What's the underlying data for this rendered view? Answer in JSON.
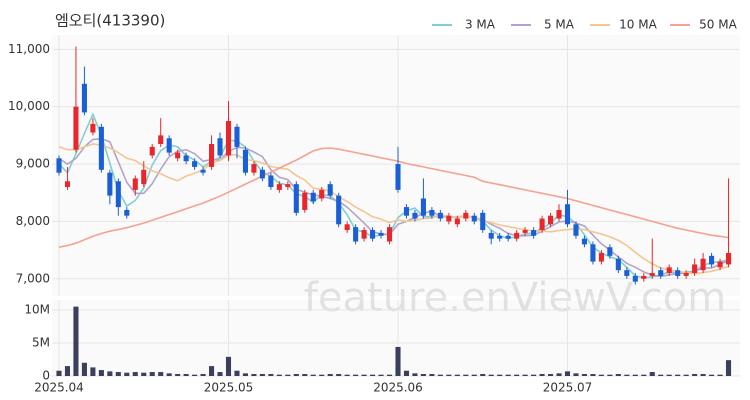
{
  "chart_data": {
    "type": "candlestick",
    "title": "엠오티(413390)",
    "watermark": "feature.enViewV.com",
    "up_color": "#e8262b",
    "down_color": "#1a5fd6",
    "volume_color": "#3b3f5e",
    "grid": true,
    "xticks": [
      {
        "value": 0,
        "label": "2025.04"
      },
      {
        "value": 20,
        "label": "2025.05"
      },
      {
        "value": 40,
        "label": "2025.06"
      },
      {
        "value": 60,
        "label": "2025.07"
      }
    ],
    "ylim": [
      6700,
      11250
    ],
    "yticks": [
      {
        "value": 7000,
        "label": "7,000"
      },
      {
        "value": 8000,
        "label": "8,000"
      },
      {
        "value": 9000,
        "label": "9,000"
      },
      {
        "value": 10000,
        "label": "10,000"
      },
      {
        "value": 11000,
        "label": "11,000"
      }
    ],
    "volume_ylim": [
      0,
      11500000
    ],
    "volume_ticks": [
      0,
      {
        "value": 5000000,
        "label": "5M"
      },
      {
        "value": 10000000,
        "label": "10M"
      }
    ],
    "open": [
      9100,
      8600,
      9250,
      10400,
      9550,
      9650,
      8850,
      8700,
      8200,
      8550,
      8650,
      9150,
      9350,
      9450,
      9100,
      9150,
      9050,
      8900,
      8950,
      9450,
      9150,
      9650,
      9250,
      8850,
      8900,
      8800,
      8550,
      8600,
      8650,
      8200,
      8500,
      8400,
      8650,
      8450,
      7850,
      7900,
      7700,
      7850,
      7800,
      7650,
      9000,
      8250,
      8150,
      8400,
      8200,
      8150,
      8000,
      7950,
      8050,
      8100,
      8150,
      7800,
      7750,
      7750,
      7700,
      7800,
      7850,
      7850,
      7950,
      8050,
      8300,
      7950,
      7700,
      7600,
      7300,
      7550,
      7350,
      7150,
      7050,
      7000,
      7050,
      7150,
      7100,
      7150,
      7050,
      7100,
      7150,
      7400,
      7200,
      7250
    ],
    "high": [
      9150,
      8950,
      11050,
      10700,
      9800,
      9700,
      8900,
      8750,
      8250,
      8800,
      9050,
      9350,
      9800,
      9500,
      9250,
      9200,
      9100,
      8950,
      9500,
      9550,
      10100,
      9700,
      9300,
      9050,
      8950,
      8850,
      8700,
      8700,
      8700,
      8550,
      8550,
      8600,
      8700,
      8500,
      8000,
      7950,
      7900,
      7900,
      7850,
      7950,
      9300,
      8300,
      8200,
      8750,
      8250,
      8200,
      8150,
      8100,
      8200,
      8150,
      8200,
      7850,
      7800,
      7800,
      7850,
      7900,
      7900,
      8100,
      8150,
      8300,
      8550,
      8000,
      7750,
      7650,
      7500,
      7600,
      7400,
      7200,
      7100,
      7100,
      7700,
      7200,
      7250,
      7200,
      7150,
      7350,
      7450,
      7450,
      7350,
      8750
    ],
    "low": [
      8800,
      8550,
      9200,
      9850,
      9500,
      8850,
      8300,
      8100,
      8050,
      8450,
      8600,
      9100,
      9300,
      9150,
      9050,
      9000,
      8900,
      8800,
      8900,
      9100,
      9050,
      9100,
      8800,
      8800,
      8700,
      8550,
      8500,
      8550,
      8100,
      8150,
      8300,
      8350,
      8400,
      7900,
      7800,
      7600,
      7650,
      7650,
      7700,
      7600,
      8500,
      8050,
      8000,
      8050,
      8050,
      8000,
      7950,
      7900,
      8000,
      7950,
      7800,
      7600,
      7650,
      7650,
      7650,
      7750,
      7700,
      7800,
      7900,
      8000,
      7900,
      7700,
      7550,
      7250,
      7250,
      7350,
      7100,
      7000,
      6900,
      6950,
      7000,
      7000,
      7050,
      7000,
      7000,
      7050,
      7100,
      7200,
      7150,
      7200
    ],
    "close": [
      8850,
      8700,
      10000,
      9900,
      9700,
      8900,
      8450,
      8250,
      8100,
      8750,
      8900,
      9300,
      9500,
      9200,
      9200,
      9050,
      8950,
      8850,
      9350,
      9150,
      9750,
      9300,
      8850,
      9000,
      8750,
      8600,
      8650,
      8650,
      8150,
      8500,
      8350,
      8550,
      8450,
      7950,
      7950,
      7650,
      7850,
      7700,
      7750,
      7900,
      8550,
      8100,
      8050,
      8100,
      8100,
      8050,
      8100,
      8050,
      8150,
      8000,
      7850,
      7700,
      7700,
      7700,
      7800,
      7850,
      7750,
      8050,
      8100,
      8200,
      7950,
      7750,
      7600,
      7300,
      7450,
      7400,
      7150,
      7050,
      6950,
      7050,
      7100,
      7050,
      7200,
      7050,
      7100,
      7250,
      7350,
      7250,
      7300,
      7450
    ],
    "volume": [
      800000,
      1500000,
      10500000,
      2000000,
      1300000,
      900000,
      700000,
      600000,
      500000,
      600000,
      500000,
      600000,
      600000,
      400000,
      300000,
      300000,
      200000,
      300000,
      1500000,
      600000,
      2900000,
      800000,
      400000,
      300000,
      300000,
      300000,
      200000,
      200000,
      300000,
      300000,
      200000,
      200000,
      300000,
      300000,
      200000,
      200000,
      200000,
      200000,
      200000,
      200000,
      4400000,
      800000,
      400000,
      300000,
      300000,
      200000,
      200000,
      200000,
      200000,
      200000,
      300000,
      200000,
      200000,
      200000,
      200000,
      200000,
      200000,
      300000,
      300000,
      400000,
      700000,
      400000,
      300000,
      300000,
      200000,
      200000,
      300000,
      200000,
      200000,
      200000,
      600000,
      200000,
      200000,
      200000,
      200000,
      300000,
      300000,
      200000,
      200000,
      2400000
    ],
    "series": [
      {
        "name": "3 MA",
        "color": "#7fd0d0",
        "values": [
          9000,
          8850,
          9183,
          9533,
          9867,
          9500,
          9017,
          8533,
          8267,
          8367,
          8583,
          8983,
          9233,
          9333,
          9300,
          9150,
          9067,
          8950,
          9050,
          9117,
          9417,
          9400,
          9300,
          9050,
          8867,
          8783,
          8667,
          8633,
          8483,
          8433,
          8333,
          8467,
          8450,
          8317,
          8117,
          7850,
          7817,
          7733,
          7767,
          7783,
          8067,
          8183,
          8233,
          8083,
          8083,
          8083,
          8083,
          8067,
          8100,
          8067,
          8000,
          7850,
          7750,
          7700,
          7733,
          7783,
          7800,
          7883,
          7967,
          8117,
          8083,
          7967,
          7767,
          7550,
          7450,
          7383,
          7333,
          7200,
          7050,
          7017,
          7033,
          7067,
          7117,
          7100,
          7117,
          7133,
          7233,
          7283,
          7300,
          7333
        ]
      },
      {
        "name": "5 MA",
        "color": "#b3a3cc",
        "values": [
          9100,
          9000,
          9100,
          9300,
          9430,
          9440,
          9390,
          9040,
          8680,
          8490,
          8490,
          8660,
          8910,
          9130,
          9220,
          9250,
          9180,
          9050,
          9080,
          9070,
          9220,
          9290,
          9280,
          9210,
          9130,
          8900,
          8770,
          8730,
          8560,
          8510,
          8460,
          8440,
          8400,
          8350,
          8250,
          8110,
          7970,
          7820,
          7780,
          7770,
          7950,
          8000,
          8070,
          8140,
          8180,
          8080,
          8080,
          8080,
          8090,
          8070,
          8030,
          7950,
          7880,
          7790,
          7750,
          7750,
          7760,
          7830,
          7910,
          7990,
          8010,
          7970,
          7920,
          7760,
          7610,
          7500,
          7380,
          7270,
          7200,
          7120,
          7060,
          7040,
          7070,
          7090,
          7100,
          7130,
          7190,
          7190,
          7250,
          7320
        ]
      },
      {
        "name": "10 MA",
        "color": "#f3c690",
        "values": [
          9300,
          9250,
          9250,
          9300,
          9350,
          9330,
          9280,
          9200,
          9100,
          9060,
          8970,
          8880,
          8830,
          8760,
          8710,
          8790,
          8840,
          8900,
          9020,
          9060,
          9160,
          9160,
          9080,
          9060,
          9020,
          8960,
          8930,
          8910,
          8800,
          8720,
          8580,
          8560,
          8530,
          8430,
          8350,
          8250,
          8170,
          8080,
          8040,
          7980,
          8030,
          8000,
          8020,
          8050,
          8060,
          8110,
          8090,
          8080,
          8100,
          8070,
          8020,
          7980,
          7940,
          7910,
          7880,
          7860,
          7830,
          7830,
          7820,
          7840,
          7860,
          7870,
          7860,
          7820,
          7780,
          7730,
          7670,
          7580,
          7460,
          7350,
          7260,
          7190,
          7150,
          7130,
          7110,
          7090,
          7110,
          7130,
          7170,
          7210
        ]
      },
      {
        "name": "50 MA",
        "color": "#f4a292",
        "values": [
          7550,
          7580,
          7620,
          7680,
          7740,
          7790,
          7830,
          7860,
          7890,
          7930,
          7970,
          8020,
          8070,
          8120,
          8170,
          8220,
          8270,
          8320,
          8380,
          8440,
          8510,
          8580,
          8650,
          8720,
          8790,
          8860,
          8930,
          9000,
          9070,
          9150,
          9230,
          9270,
          9280,
          9260,
          9230,
          9200,
          9170,
          9140,
          9110,
          9080,
          9050,
          9010,
          8980,
          8950,
          8920,
          8890,
          8860,
          8830,
          8800,
          8770,
          8700,
          8670,
          8640,
          8610,
          8580,
          8550,
          8520,
          8490,
          8460,
          8430,
          8400,
          8360,
          8320,
          8280,
          8240,
          8200,
          8160,
          8120,
          8080,
          8040,
          8000,
          7960,
          7920,
          7880,
          7850,
          7820,
          7790,
          7760,
          7740,
          7720
        ]
      }
    ]
  }
}
